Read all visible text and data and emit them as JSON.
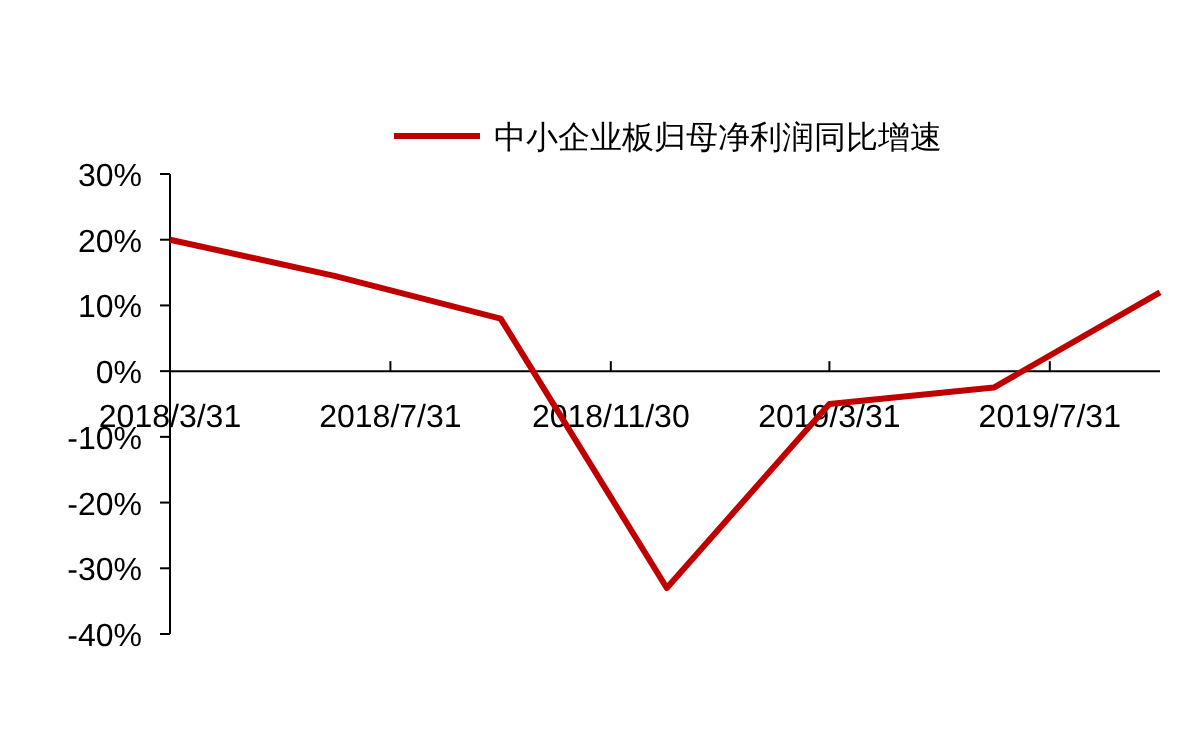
{
  "chart_data": {
    "type": "line",
    "x": [
      "2018-03-31",
      "2018-06-30",
      "2018-09-30",
      "2018-12-31",
      "2019-03-31",
      "2019-06-30",
      "2019-09-30"
    ],
    "series": [
      {
        "name": "中小企业板归母净利润同比增速",
        "color": "#c00000",
        "values": [
          20,
          14.5,
          8,
          -33,
          -5,
          -2.5,
          12
        ]
      }
    ],
    "xlim": [
      "2018-03-31",
      "2019-09-30"
    ],
    "xticks": [
      {
        "value": "2018-03-31",
        "label": "2018/3/31"
      },
      {
        "value": "2018-07-31",
        "label": "2018/7/31"
      },
      {
        "value": "2018-11-30",
        "label": "2018/11/30"
      },
      {
        "value": "2019-03-31",
        "label": "2019/3/31"
      },
      {
        "value": "2019-07-31",
        "label": "2019/7/31"
      }
    ],
    "ylim": [
      -40,
      30
    ],
    "yticks": [
      {
        "value": -40,
        "label": "-40%"
      },
      {
        "value": -30,
        "label": "-30%"
      },
      {
        "value": -20,
        "label": "-20%"
      },
      {
        "value": -10,
        "label": "-10%"
      },
      {
        "value": 0,
        "label": "0%"
      },
      {
        "value": 10,
        "label": "10%"
      },
      {
        "value": 20,
        "label": "20%"
      },
      {
        "value": 30,
        "label": "30%"
      }
    ],
    "grid": false,
    "legend": "top",
    "marker": "none",
    "line_style": "solid"
  }
}
